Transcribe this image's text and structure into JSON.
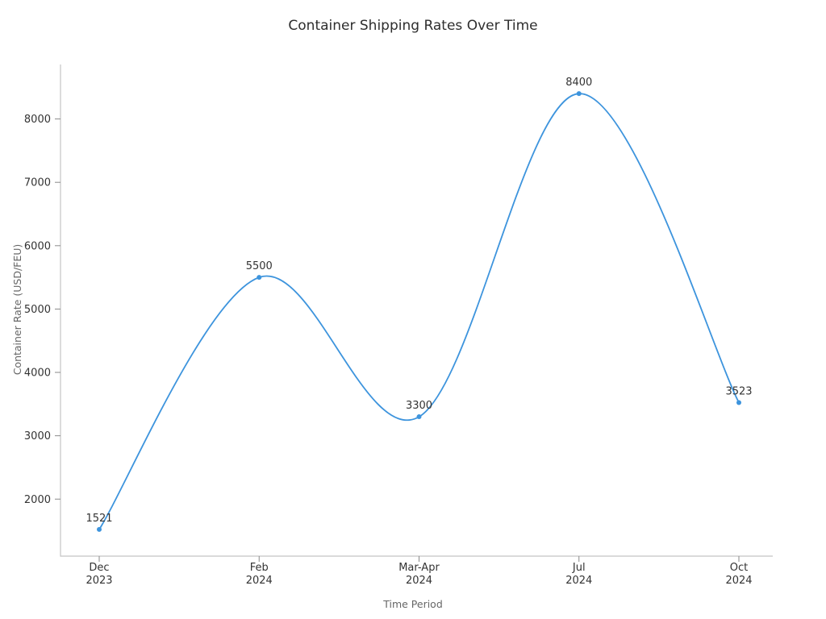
{
  "chart_data": {
    "type": "line",
    "title": "Container Shipping Rates Over Time",
    "xlabel": "Time Period",
    "ylabel": "Container Rate (USD/FEU)",
    "categories": [
      "Dec 2023",
      "Feb 2024",
      "Mar-Apr 2024",
      "Jul 2024",
      "Oct 2024"
    ],
    "category_lines": [
      [
        "Dec",
        "2023"
      ],
      [
        "Feb",
        "2024"
      ],
      [
        "Mar-Apr",
        "2024"
      ],
      [
        "Jul",
        "2024"
      ],
      [
        "Oct",
        "2024"
      ]
    ],
    "values": [
      1521,
      5500,
      3300,
      8400,
      3523
    ],
    "point_labels": [
      "1521",
      "5500",
      "3300",
      "8400",
      "3523"
    ],
    "ylim": [
      1100,
      8860
    ],
    "yticks": [
      2000,
      3000,
      4000,
      5000,
      6000,
      7000,
      8000
    ],
    "grid": false,
    "legend": "none",
    "line_color": "#3d94dd",
    "marker_color": "#3d94dd",
    "axis_color": "#c4c4c4",
    "tick_color": "#8a8a8a",
    "tick_label_color": "#333333",
    "point_label_color": "#333333",
    "label_color": "#666666",
    "title_color": "#2e2e2e"
  }
}
